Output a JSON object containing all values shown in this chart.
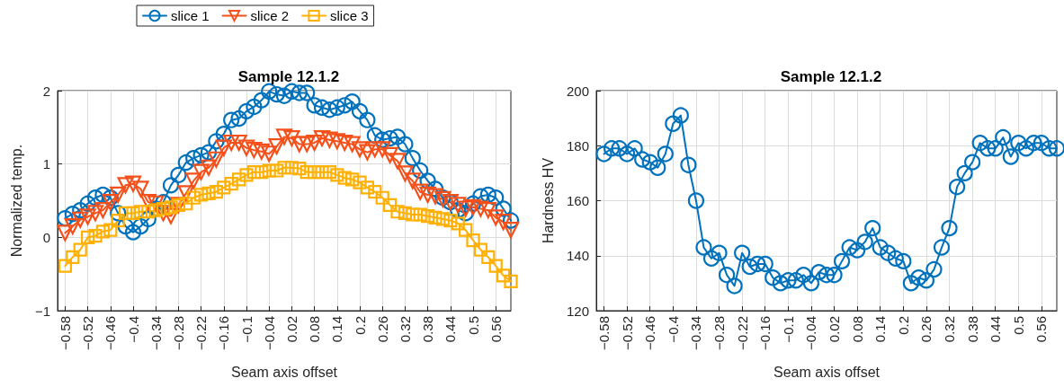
{
  "chart_data": [
    {
      "type": "line",
      "title": "Sample 12.1.2",
      "xlabel": "Seam axis offset",
      "ylabel": "Normalized temp.",
      "legend": "top",
      "grid": true,
      "x": [
        -0.58,
        -0.56,
        -0.54,
        -0.52,
        -0.5,
        -0.48,
        -0.46,
        -0.44,
        -0.42,
        -0.4,
        -0.38,
        -0.36,
        -0.34,
        -0.32,
        -0.3,
        -0.28,
        -0.26,
        -0.24,
        -0.22,
        -0.2,
        -0.18,
        -0.16,
        -0.14,
        -0.12,
        -0.1,
        -0.08,
        -0.06,
        -0.04,
        -0.02,
        0,
        0.02,
        0.04,
        0.06,
        0.08,
        0.1,
        0.12,
        0.14,
        0.16,
        0.18,
        0.2,
        0.22,
        0.24,
        0.26,
        0.28,
        0.3,
        0.32,
        0.34,
        0.36,
        0.38,
        0.4,
        0.42,
        0.44,
        0.46,
        0.48,
        0.5,
        0.52,
        0.54,
        0.56,
        0.58,
        0.6
      ],
      "xlim": [
        -0.6,
        0.6
      ],
      "xticks": [
        -0.58,
        -0.52,
        -0.46,
        -0.4,
        -0.34,
        -0.28,
        -0.22,
        -0.16,
        -0.1,
        -0.04,
        0.02,
        0.08,
        0.14,
        0.2,
        0.26,
        0.32,
        0.38,
        0.44,
        0.5,
        0.56
      ],
      "ylim": [
        -1,
        2
      ],
      "yticks": [
        -1,
        0,
        1,
        2
      ],
      "series": [
        {
          "name": "slice 1",
          "color": "#0072bd",
          "marker": "circle",
          "values": [
            0.26,
            0.32,
            0.37,
            0.46,
            0.54,
            0.58,
            0.54,
            0.33,
            0.15,
            0.07,
            0.15,
            0.25,
            0.39,
            0.48,
            0.71,
            0.85,
            1.02,
            1.08,
            1.12,
            1.16,
            1.31,
            1.41,
            1.6,
            1.62,
            1.72,
            1.78,
            1.87,
            1.99,
            1.95,
            1.93,
            1.99,
            1.97,
            1.97,
            1.8,
            1.77,
            1.74,
            1.77,
            1.8,
            1.85,
            1.72,
            1.6,
            1.39,
            1.33,
            1.35,
            1.37,
            1.27,
            1.08,
            0.91,
            0.77,
            0.66,
            0.54,
            0.48,
            0.37,
            0.33,
            0.46,
            0.56,
            0.58,
            0.54,
            0.39,
            0.23
          ]
        },
        {
          "name": "slice 2",
          "color": "#f5501a",
          "marker": "triangle",
          "values": [
            0.06,
            0.15,
            0.24,
            0.28,
            0.33,
            0.37,
            0.48,
            0.58,
            0.71,
            0.73,
            0.66,
            0.48,
            0.46,
            0.33,
            0.29,
            0.44,
            0.6,
            0.77,
            0.89,
            0.95,
            1.06,
            1.22,
            1.29,
            1.29,
            1.22,
            1.19,
            1.17,
            1.14,
            1.24,
            1.37,
            1.35,
            1.27,
            1.27,
            1.29,
            1.35,
            1.33,
            1.31,
            1.29,
            1.27,
            1.2,
            1.16,
            1.2,
            1.2,
            1.12,
            1.04,
            0.87,
            0.77,
            0.62,
            0.58,
            0.56,
            0.52,
            0.48,
            0.44,
            0.39,
            0.41,
            0.39,
            0.37,
            0.27,
            0.21,
            0.1
          ]
        },
        {
          "name": "slice 3",
          "color": "#ffb000",
          "marker": "square",
          "values": [
            -0.39,
            -0.27,
            -0.17,
            0,
            0.02,
            0.08,
            0.1,
            0.23,
            0.33,
            0.33,
            0.35,
            0.35,
            0.37,
            0.39,
            0.41,
            0.44,
            0.46,
            0.54,
            0.58,
            0.6,
            0.62,
            0.68,
            0.73,
            0.79,
            0.85,
            0.89,
            0.89,
            0.91,
            0.91,
            0.95,
            0.95,
            0.94,
            0.89,
            0.89,
            0.89,
            0.89,
            0.85,
            0.81,
            0.79,
            0.75,
            0.68,
            0.62,
            0.54,
            0.44,
            0.35,
            0.33,
            0.31,
            0.31,
            0.29,
            0.27,
            0.25,
            0.23,
            0.19,
            0.1,
            -0.04,
            -0.17,
            -0.27,
            -0.39,
            -0.52,
            -0.6
          ]
        }
      ]
    },
    {
      "type": "line",
      "title": "Sample 12.1.2",
      "xlabel": "Seam axis offset",
      "ylabel": "Hardness HV",
      "grid": true,
      "marker": "circle",
      "x": [
        -0.58,
        -0.56,
        -0.54,
        -0.52,
        -0.5,
        -0.48,
        -0.46,
        -0.44,
        -0.42,
        -0.4,
        -0.38,
        -0.36,
        -0.34,
        -0.32,
        -0.3,
        -0.28,
        -0.26,
        -0.24,
        -0.22,
        -0.2,
        -0.18,
        -0.16,
        -0.14,
        -0.12,
        -0.1,
        -0.08,
        -0.06,
        -0.04,
        -0.02,
        0,
        0.02,
        0.04,
        0.06,
        0.08,
        0.1,
        0.12,
        0.14,
        0.16,
        0.18,
        0.2,
        0.22,
        0.24,
        0.26,
        0.28,
        0.3,
        0.32,
        0.34,
        0.36,
        0.38,
        0.4,
        0.42,
        0.44,
        0.46,
        0.48,
        0.5,
        0.52,
        0.54,
        0.56,
        0.58,
        0.6
      ],
      "xlim": [
        -0.6,
        0.6
      ],
      "xticks": [
        -0.58,
        -0.52,
        -0.46,
        -0.4,
        -0.34,
        -0.28,
        -0.22,
        -0.16,
        -0.1,
        -0.04,
        0.02,
        0.08,
        0.14,
        0.2,
        0.26,
        0.32,
        0.38,
        0.44,
        0.5,
        0.56
      ],
      "ylim": [
        120,
        200
      ],
      "yticks": [
        120,
        140,
        160,
        180,
        200
      ],
      "series": [
        {
          "color": "#0072bd",
          "values": [
            177,
            179,
            179,
            177,
            179,
            175,
            174,
            172,
            177,
            188,
            191,
            173,
            160,
            143,
            139,
            141,
            133,
            129,
            141,
            136,
            137,
            137,
            132,
            130,
            131,
            131,
            133,
            130,
            134,
            133,
            133,
            138,
            143,
            142,
            145,
            150,
            143,
            141,
            139,
            138,
            130,
            132,
            131,
            135,
            143,
            150,
            165,
            170,
            174,
            181,
            179,
            179,
            183,
            176,
            181,
            179,
            181,
            181,
            179,
            179
          ]
        }
      ]
    }
  ]
}
